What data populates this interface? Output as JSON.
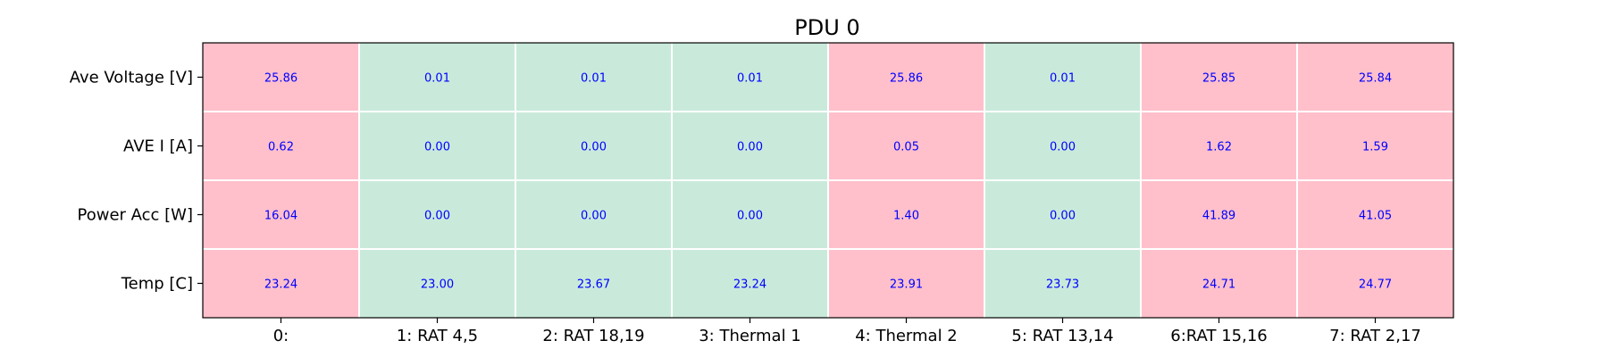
{
  "chart_data": {
    "type": "heatmap",
    "title": "PDU 0",
    "rows": [
      "Ave Voltage [V]",
      "AVE I [A]",
      "Power Acc [W]",
      "Temp [C]"
    ],
    "columns": [
      "0:",
      "1: RAT 4,5",
      "2: RAT 18,19",
      "3: Thermal 1",
      "4: Thermal 2",
      "5: RAT 13,14",
      "6:RAT 15,16",
      "7: RAT 2,17"
    ],
    "values": [
      [
        "25.86",
        "0.01",
        "0.01",
        "0.01",
        "25.86",
        "0.01",
        "25.85",
        "25.84"
      ],
      [
        "0.62",
        "0.00",
        "0.00",
        "0.00",
        "0.05",
        "0.00",
        "1.62",
        "1.59"
      ],
      [
        "16.04",
        "0.00",
        "0.00",
        "0.00",
        "1.40",
        "0.00",
        "41.89",
        "41.05"
      ],
      [
        "23.24",
        "23.00",
        "23.67",
        "23.24",
        "23.91",
        "23.73",
        "24.71",
        "24.77"
      ]
    ],
    "column_state": [
      "on",
      "off",
      "off",
      "off",
      "on",
      "off",
      "on",
      "on"
    ],
    "colors": {
      "on": "#ffc0cb",
      "off": "#c9eadb",
      "value_text": "#0000ff",
      "grid": "#ffffff",
      "frame": "#000000",
      "text": "#000000"
    }
  }
}
